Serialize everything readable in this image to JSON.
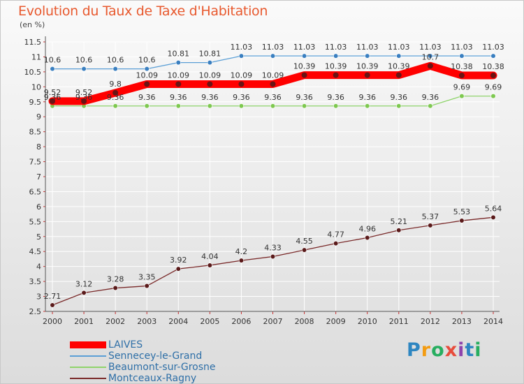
{
  "title": "Evolution du Taux de Taxe d'Habitation",
  "unit_label": "(en %)",
  "logo_text": "Proxiti",
  "colors": {
    "title": "#e8592e",
    "legend_text": "#2e6fa7",
    "axis": "#555555",
    "gridline": "#ffffff",
    "logo": [
      "#2e86c1",
      "#f39c12",
      "#27ae60",
      "#e74c3c",
      "#8e44ad",
      "#2e86c1",
      "#27ae60"
    ]
  },
  "chart_data": {
    "type": "line",
    "title": "Evolution du Taux de Taxe d'Habitation",
    "ylabel": "(en %)",
    "xlabel": "",
    "x": [
      "2000",
      "2001",
      "2002",
      "2003",
      "2004",
      "2005",
      "2006",
      "2007",
      "2008",
      "2009",
      "2010",
      "2011",
      "2012",
      "2013",
      "2014"
    ],
    "ylim": [
      2.5,
      11.5
    ],
    "yticks": [
      "2.5",
      "3",
      "3.5",
      "4",
      "4.5",
      "5",
      "5.5",
      "6",
      "6.5",
      "7",
      "7.5",
      "8",
      "8.5",
      "9",
      "9.5",
      "10",
      "10.5",
      "11",
      "11.5"
    ],
    "grid": true,
    "legend_position": "bottom-left",
    "series": [
      {
        "name": "LAIVES",
        "color": "#ff0000",
        "marker_color": "#6b1414",
        "thick": true,
        "values": [
          9.52,
          9.52,
          9.8,
          10.09,
          10.09,
          10.09,
          10.09,
          10.09,
          10.39,
          10.39,
          10.39,
          10.39,
          10.7,
          10.38,
          10.38
        ],
        "labels": [
          "9.52",
          "9.52",
          "9.8",
          "10.09",
          "10.09",
          "10.09",
          "10.09",
          "10.09",
          "10.39",
          "10.39",
          "10.39",
          "10.39",
          "10.7",
          "10.38",
          "10.38"
        ]
      },
      {
        "name": "Sennecey-le-Grand",
        "color": "#5b9fd6",
        "marker_color": "#3a7fc0",
        "thick": false,
        "values": [
          10.6,
          10.6,
          10.6,
          10.6,
          10.81,
          10.81,
          11.03,
          11.03,
          11.03,
          11.03,
          11.03,
          11.03,
          11.03,
          11.03,
          11.03
        ],
        "labels": [
          "10.6",
          "10.6",
          "10.6",
          "10.6",
          "10.81",
          "10.81",
          "11.03",
          "11.03",
          "11.03",
          "11.03",
          "11.03",
          "11.03",
          "11.03",
          "11.03",
          "11.03"
        ]
      },
      {
        "name": "Beaumont-sur-Grosne",
        "color": "#8fd46b",
        "marker_color": "#7ec850",
        "thick": false,
        "values": [
          9.36,
          9.36,
          9.36,
          9.36,
          9.36,
          9.36,
          9.36,
          9.36,
          9.36,
          9.36,
          9.36,
          9.36,
          9.36,
          9.69,
          9.69
        ],
        "labels": [
          "9.36",
          "9.36",
          "9.36",
          "9.36",
          "9.36",
          "9.36",
          "9.36",
          "9.36",
          "9.36",
          "9.36",
          "9.36",
          "9.36",
          "9.36",
          "9.69",
          "9.69"
        ]
      },
      {
        "name": "Montceaux-Ragny",
        "color": "#7a2a2a",
        "marker_color": "#5a1a1a",
        "thick": false,
        "values": [
          2.71,
          3.12,
          3.28,
          3.35,
          3.92,
          4.04,
          4.2,
          4.33,
          4.55,
          4.77,
          4.96,
          5.21,
          5.37,
          5.53,
          5.64
        ],
        "labels": [
          "2.71",
          "3.12",
          "3.28",
          "3.35",
          "3.92",
          "4.04",
          "4.2",
          "4.33",
          "4.55",
          "4.77",
          "4.96",
          "5.21",
          "5.37",
          "5.53",
          "5.64"
        ]
      }
    ]
  }
}
